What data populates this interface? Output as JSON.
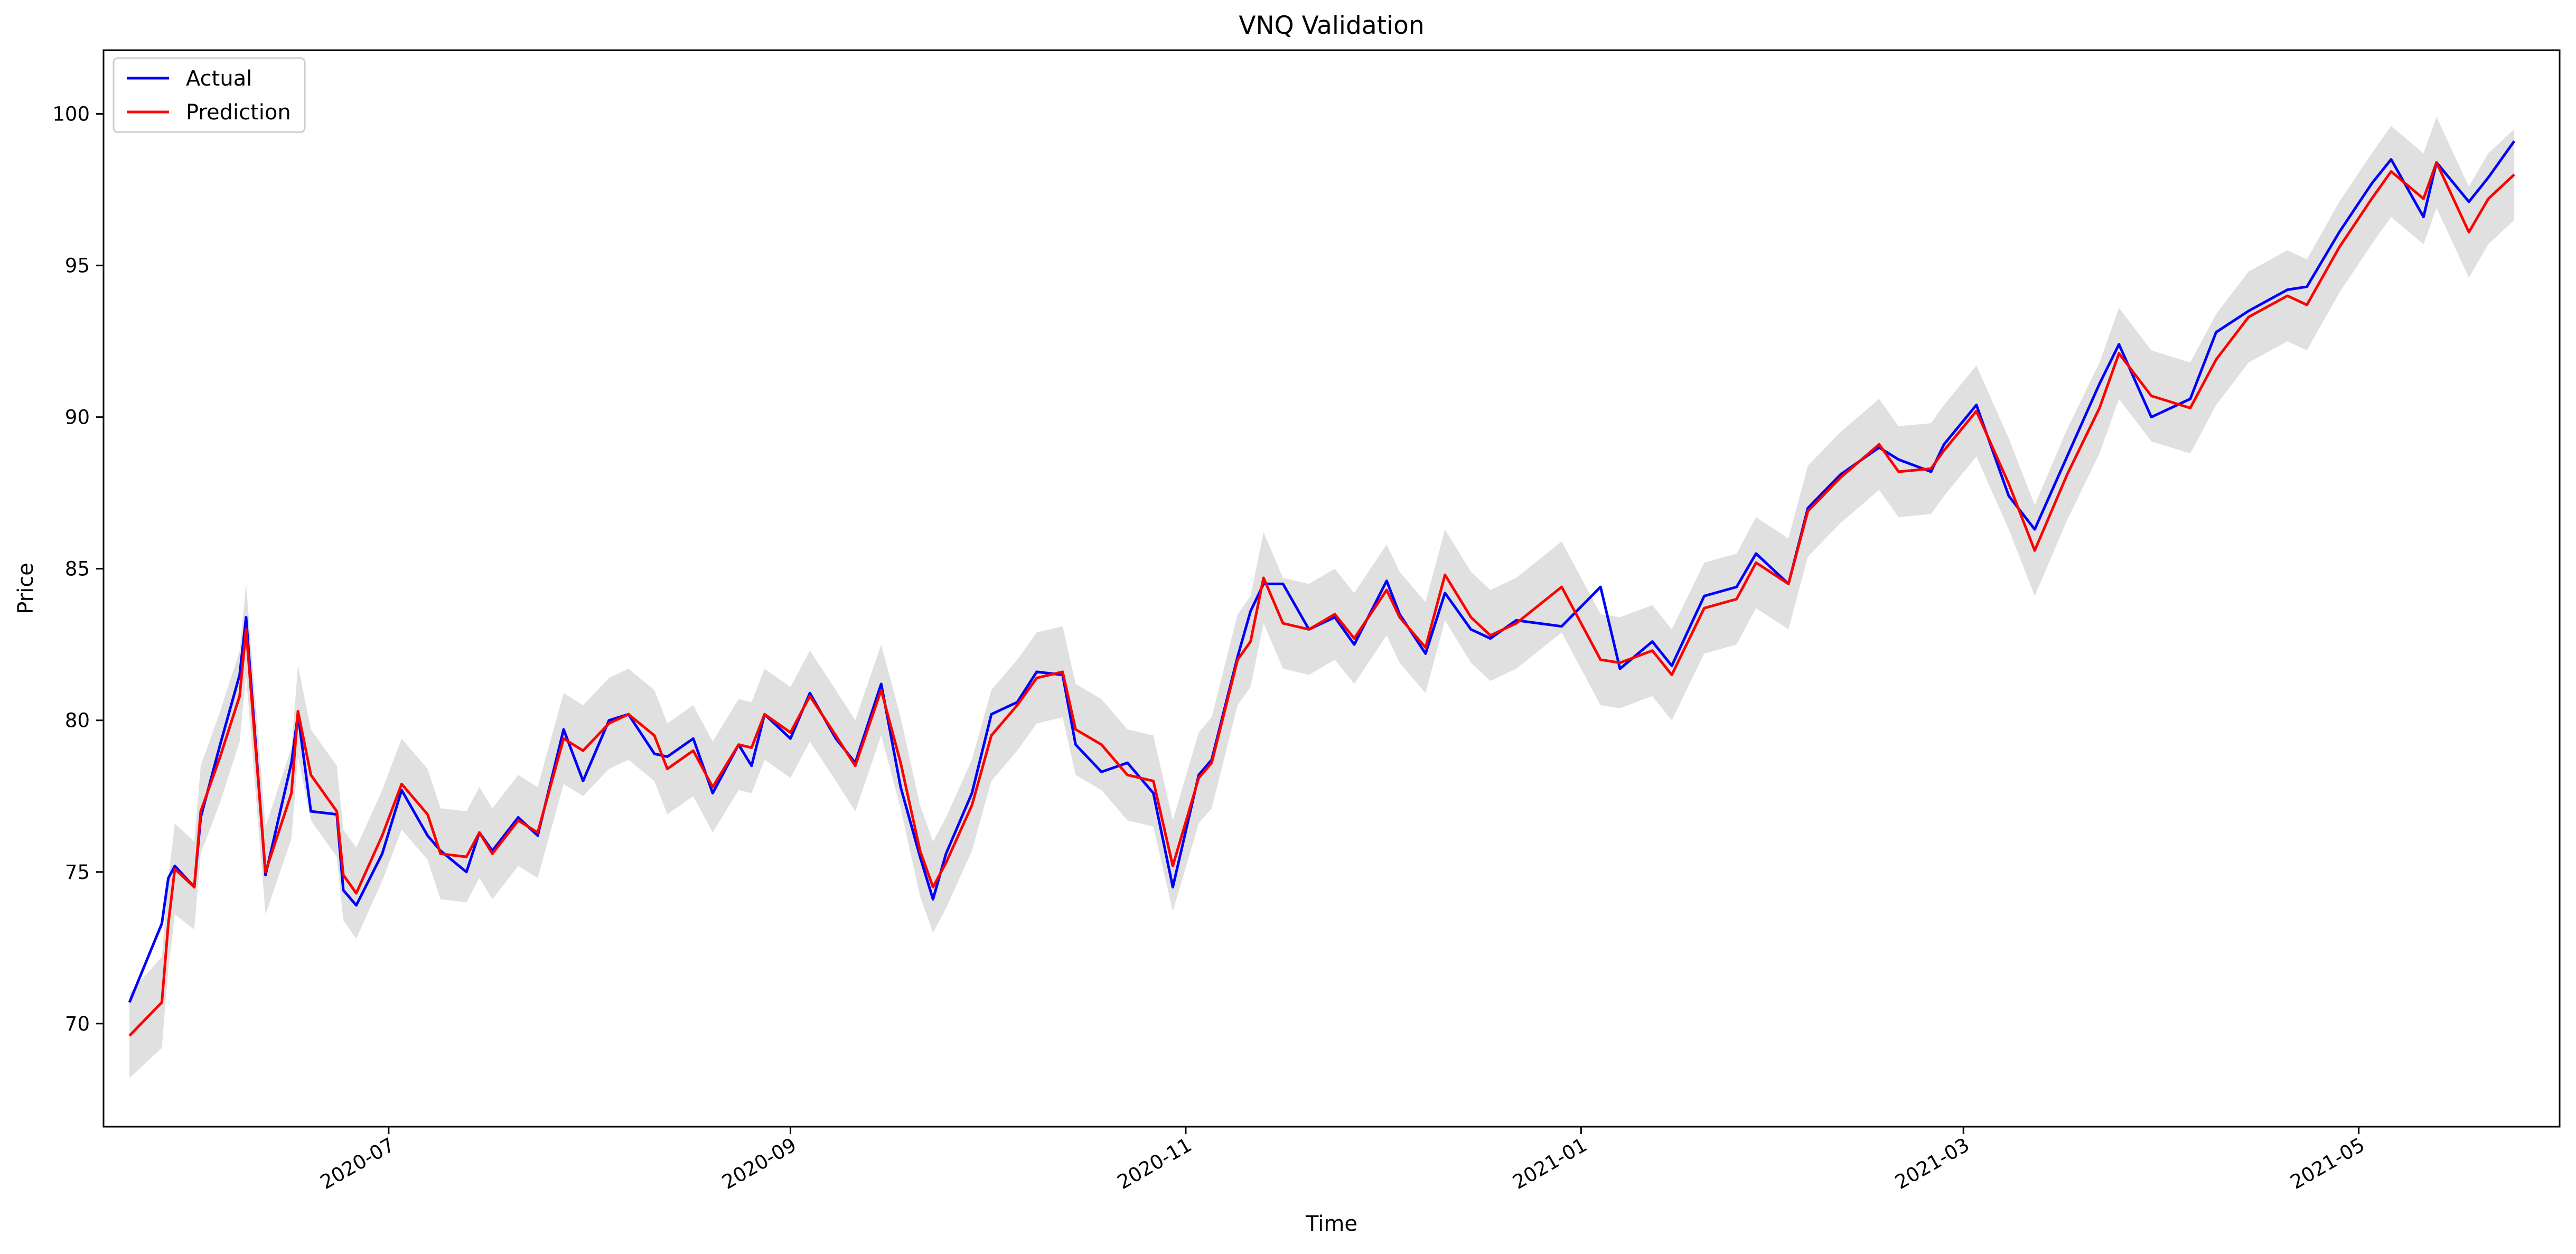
{
  "chart_data": {
    "type": "line",
    "title": "VNQ Validation",
    "xlabel": "Time",
    "ylabel": "Price",
    "xlim": [
      "2020-05-18",
      "2021-06-01"
    ],
    "ylim": [
      66.6,
      102.1
    ],
    "grid": false,
    "legend_position": "top-left",
    "x_ticks": [
      "2020-07-01",
      "2020-09-01",
      "2020-11-01",
      "2021-01-01",
      "2021-03-01",
      "2021-05-01"
    ],
    "x_tick_labels": [
      "2020-07",
      "2020-09",
      "2020-11",
      "2021-01",
      "2021-03",
      "2021-05"
    ],
    "y_ticks": [
      70,
      75,
      80,
      85,
      90,
      95,
      100
    ],
    "colors": {
      "actual": "#0000ff",
      "prediction": "#ff0000",
      "band": "#d3d3d3"
    },
    "x": [
      "2020-05-22",
      "2020-05-27",
      "2020-05-28",
      "2020-05-29",
      "2020-06-01",
      "2020-06-02",
      "2020-06-05",
      "2020-06-08",
      "2020-06-09",
      "2020-06-12",
      "2020-06-16",
      "2020-06-17",
      "2020-06-19",
      "2020-06-23",
      "2020-06-24",
      "2020-06-26",
      "2020-06-30",
      "2020-07-03",
      "2020-07-07",
      "2020-07-09",
      "2020-07-13",
      "2020-07-15",
      "2020-07-17",
      "2020-07-21",
      "2020-07-24",
      "2020-07-28",
      "2020-07-31",
      "2020-08-04",
      "2020-08-07",
      "2020-08-11",
      "2020-08-13",
      "2020-08-17",
      "2020-08-20",
      "2020-08-24",
      "2020-08-26",
      "2020-08-28",
      "2020-09-01",
      "2020-09-04",
      "2020-09-08",
      "2020-09-11",
      "2020-09-15",
      "2020-09-18",
      "2020-09-21",
      "2020-09-23",
      "2020-09-25",
      "2020-09-29",
      "2020-10-02",
      "2020-10-06",
      "2020-10-09",
      "2020-10-13",
      "2020-10-15",
      "2020-10-19",
      "2020-10-23",
      "2020-10-27",
      "2020-10-30",
      "2020-11-03",
      "2020-11-05",
      "2020-11-09",
      "2020-11-11",
      "2020-11-13",
      "2020-11-16",
      "2020-11-20",
      "2020-11-24",
      "2020-11-27",
      "2020-12-02",
      "2020-12-04",
      "2020-12-08",
      "2020-12-11",
      "2020-12-15",
      "2020-12-18",
      "2020-12-22",
      "2020-12-29",
      "2021-01-04",
      "2021-01-07",
      "2021-01-12",
      "2021-01-15",
      "2021-01-20",
      "2021-01-25",
      "2021-01-28",
      "2021-02-02",
      "2021-02-05",
      "2021-02-10",
      "2021-02-16",
      "2021-02-19",
      "2021-02-24",
      "2021-02-26",
      "2021-03-03",
      "2021-03-08",
      "2021-03-12",
      "2021-03-17",
      "2021-03-22",
      "2021-03-25",
      "2021-03-30",
      "2021-04-05",
      "2021-04-09",
      "2021-04-14",
      "2021-04-20",
      "2021-04-23",
      "2021-04-28",
      "2021-05-03",
      "2021-05-06",
      "2021-05-11",
      "2021-05-13",
      "2021-05-18",
      "2021-05-21",
      "2021-05-25"
    ],
    "series": [
      {
        "name": "Actual",
        "values": [
          70.7,
          73.3,
          74.8,
          75.2,
          74.5,
          76.8,
          79.2,
          81.5,
          83.4,
          74.9,
          78.6,
          80.2,
          77.0,
          76.9,
          74.4,
          73.9,
          75.6,
          77.7,
          76.2,
          75.7,
          75.0,
          76.3,
          75.7,
          76.8,
          76.2,
          79.7,
          78.0,
          80.0,
          80.2,
          78.9,
          78.8,
          79.4,
          77.6,
          79.2,
          78.5,
          80.2,
          79.4,
          80.9,
          79.4,
          78.6,
          81.2,
          77.8,
          75.5,
          74.1,
          75.6,
          77.6,
          80.2,
          80.6,
          81.6,
          81.5,
          79.2,
          78.3,
          78.6,
          77.6,
          74.5,
          78.2,
          78.7,
          82.1,
          83.6,
          84.5,
          84.5,
          83.0,
          83.4,
          82.5,
          84.6,
          83.5,
          82.2,
          84.2,
          83.0,
          82.7,
          83.3,
          83.1,
          84.4,
          81.7,
          82.6,
          81.8,
          84.1,
          84.4,
          85.5,
          84.5,
          87.0,
          88.1,
          89.0,
          88.6,
          88.2,
          89.1,
          90.4,
          87.4,
          86.3,
          88.7,
          91.1,
          92.4,
          90.0,
          90.6,
          92.8,
          93.5,
          94.2,
          94.3,
          96.1,
          97.7,
          98.5,
          96.6,
          98.4,
          97.1,
          97.9,
          99.1
        ]
      },
      {
        "name": "Prediction",
        "values": [
          69.6,
          70.7,
          73.3,
          75.1,
          74.5,
          77.0,
          78.8,
          80.8,
          83.0,
          75.0,
          77.6,
          80.3,
          78.2,
          77.0,
          74.9,
          74.3,
          76.2,
          77.9,
          76.9,
          75.6,
          75.5,
          76.3,
          75.6,
          76.7,
          76.3,
          79.4,
          79.0,
          79.9,
          80.2,
          79.5,
          78.4,
          79.0,
          77.8,
          79.2,
          79.1,
          80.2,
          79.6,
          80.8,
          79.5,
          78.5,
          81.0,
          78.6,
          75.7,
          74.5,
          75.3,
          77.2,
          79.5,
          80.5,
          81.4,
          81.6,
          79.7,
          79.2,
          78.2,
          78.0,
          75.2,
          78.1,
          78.6,
          82.0,
          82.6,
          84.7,
          83.2,
          83.0,
          83.5,
          82.7,
          84.3,
          83.4,
          82.4,
          84.8,
          83.4,
          82.8,
          83.2,
          84.4,
          82.0,
          81.9,
          82.3,
          81.5,
          83.7,
          84.0,
          85.2,
          84.5,
          86.9,
          88.0,
          89.1,
          88.2,
          88.3,
          88.9,
          90.2,
          87.8,
          85.6,
          88.1,
          90.3,
          92.1,
          90.7,
          90.3,
          91.9,
          93.3,
          94.0,
          93.7,
          95.6,
          97.2,
          98.1,
          97.2,
          98.4,
          96.1,
          97.2,
          98.0
        ]
      }
    ],
    "band": {
      "lower": [
        68.2,
        69.2,
        71.8,
        73.6,
        73.1,
        75.6,
        77.3,
        79.3,
        81.5,
        73.6,
        76.1,
        78.8,
        76.7,
        75.5,
        73.4,
        72.8,
        74.7,
        76.4,
        75.4,
        74.1,
        74.0,
        74.8,
        74.1,
        75.2,
        74.8,
        77.9,
        77.5,
        78.4,
        78.7,
        78.0,
        76.9,
        77.5,
        76.3,
        77.7,
        77.6,
        78.7,
        78.1,
        79.3,
        78.0,
        77.0,
        79.5,
        77.1,
        74.2,
        73.0,
        73.8,
        75.7,
        78.0,
        79.0,
        79.9,
        80.1,
        78.2,
        77.7,
        76.7,
        76.5,
        73.7,
        76.6,
        77.1,
        80.5,
        81.1,
        83.2,
        81.7,
        81.5,
        82.0,
        81.2,
        82.8,
        81.9,
        80.9,
        83.3,
        81.9,
        81.3,
        81.7,
        82.9,
        80.5,
        80.4,
        80.8,
        80.0,
        82.2,
        82.5,
        83.7,
        83.0,
        85.4,
        86.5,
        87.6,
        86.7,
        86.8,
        87.4,
        88.7,
        86.3,
        84.1,
        86.6,
        88.8,
        90.6,
        89.2,
        88.8,
        90.4,
        91.8,
        92.5,
        92.2,
        94.1,
        95.7,
        96.6,
        95.7,
        96.9,
        94.6,
        95.7,
        96.5
      ],
      "upper": [
        71.0,
        72.2,
        74.8,
        76.6,
        76.0,
        78.5,
        80.3,
        82.3,
        84.5,
        76.5,
        79.1,
        81.8,
        79.7,
        78.5,
        76.4,
        75.8,
        77.7,
        79.4,
        78.4,
        77.1,
        77.0,
        77.8,
        77.1,
        78.2,
        77.8,
        80.9,
        80.5,
        81.4,
        81.7,
        81.0,
        79.9,
        80.5,
        79.3,
        80.7,
        80.6,
        81.7,
        81.1,
        82.3,
        81.0,
        80.0,
        82.5,
        80.1,
        77.2,
        76.0,
        76.8,
        78.7,
        81.0,
        82.0,
        82.9,
        83.1,
        81.2,
        80.7,
        79.7,
        79.5,
        76.7,
        79.6,
        80.1,
        83.5,
        84.1,
        86.2,
        84.7,
        84.5,
        85.0,
        84.2,
        85.8,
        84.9,
        83.9,
        86.3,
        84.9,
        84.3,
        84.7,
        85.9,
        83.5,
        83.4,
        83.8,
        83.0,
        85.2,
        85.5,
        86.7,
        86.0,
        88.4,
        89.5,
        90.6,
        89.7,
        89.8,
        90.4,
        91.7,
        89.3,
        87.1,
        89.6,
        91.8,
        93.6,
        92.2,
        91.8,
        93.4,
        94.8,
        95.5,
        95.2,
        97.1,
        98.7,
        99.6,
        98.7,
        99.9,
        97.6,
        98.7,
        99.5
      ]
    }
  }
}
